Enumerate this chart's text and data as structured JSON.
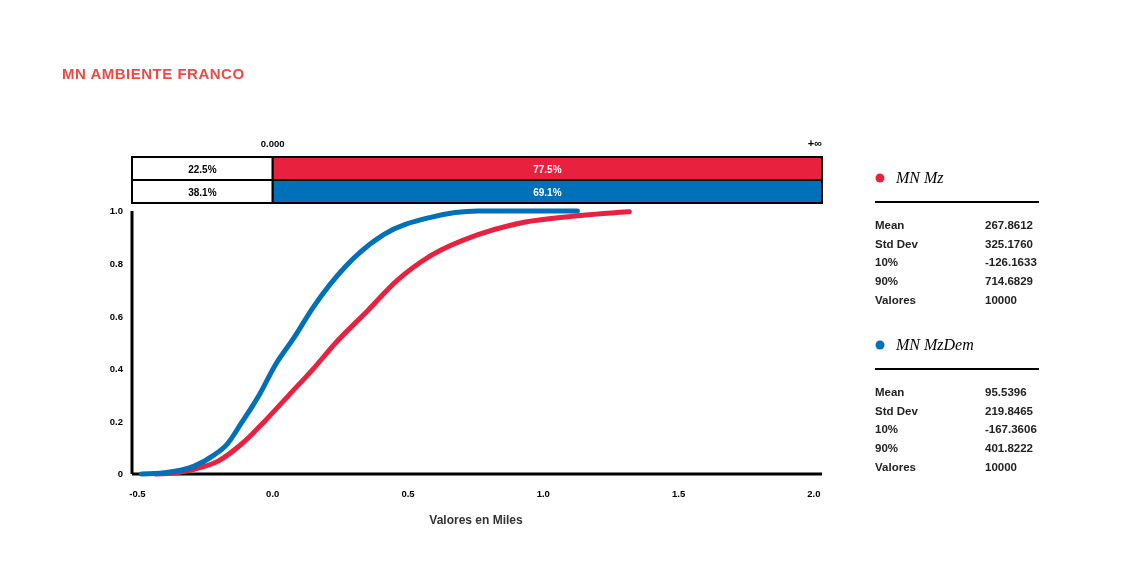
{
  "chart_data": {
    "type": "line",
    "title": "MN AMBIENTE FRANCO",
    "xlabel": "Valores en Miles",
    "xlim": [
      -0.52,
      2.03
    ],
    "ylim": [
      0,
      1
    ],
    "xticks": [
      -0.5,
      {
        "value": 0,
        "label": "0.0"
      },
      0.5,
      {
        "value": 1,
        "label": "1.0"
      },
      1.5,
      {
        "value": 2,
        "label": "2.0"
      }
    ],
    "yticks": [
      0,
      0.2,
      0.4,
      0.6,
      0.8,
      {
        "value": 1,
        "label": "1.0"
      }
    ],
    "grid": false,
    "legend": "right",
    "marker": "none",
    "line_style": "solid",
    "series": [
      {
        "name": "MN Mz",
        "color": "#e8213f",
        "x": [
          -0.434,
          -0.35,
          -0.29,
          -0.2,
          -0.115,
          -0.03,
          0.06,
          0.15,
          0.234,
          0.35,
          0.46,
          0.584,
          0.759,
          0.934,
          1.108,
          1.318
        ],
        "values": [
          0,
          0.006,
          0.018,
          0.05,
          0.114,
          0.2,
          0.3,
          0.4,
          0.5,
          0.62,
          0.736,
          0.83,
          0.91,
          0.958,
          0.98,
          0.997
        ]
      },
      {
        "name": "MN MzDem",
        "color": "#0070b8",
        "x": [
          -0.486,
          -0.4,
          -0.29,
          -0.22,
          -0.168,
          -0.115,
          -0.05,
          0.007,
          0.08,
          0.147,
          0.27,
          0.41,
          0.584,
          0.76,
          1.126
        ],
        "values": [
          0,
          0.005,
          0.03,
          0.07,
          0.114,
          0.195,
          0.3,
          0.41,
          0.52,
          0.63,
          0.79,
          0.91,
          0.976,
          1.0,
          1.0
        ]
      }
    ],
    "annotations": [
      "0.000",
      "+∞",
      "22.5%",
      "77.5%",
      "38.1%",
      "69.1%",
      "Mean",
      "267.8612",
      "Std Dev",
      "325.1760",
      "10%",
      "-126.1633",
      "90%",
      "714.6829",
      "Valores",
      "10000",
      "Mean",
      "95.5396",
      "Std Dev",
      "219.8465",
      "10%",
      "-167.3606",
      "90%",
      "401.8222",
      "Valores",
      "10000"
    ]
  }
}
